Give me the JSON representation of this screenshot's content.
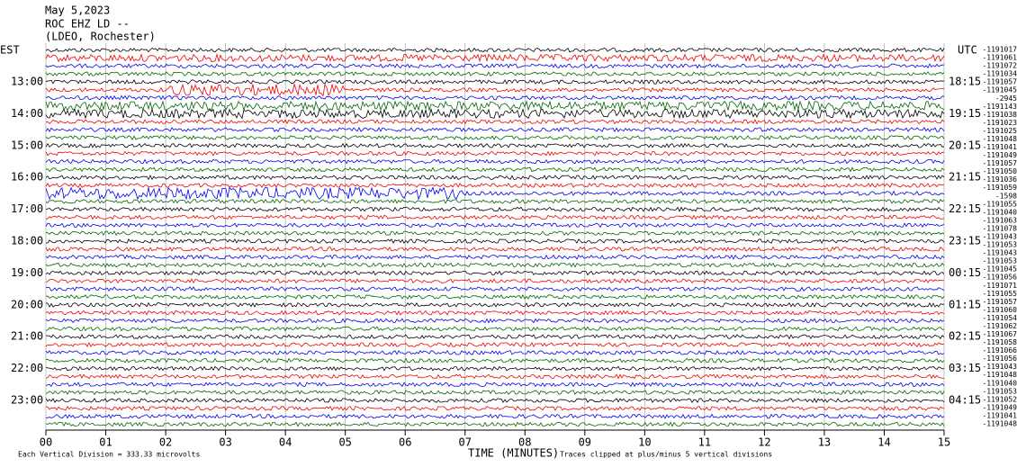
{
  "header": {
    "date": "May 5,2023",
    "station": "ROC EHZ LD --",
    "location": "(LDEO, Rochester)"
  },
  "left_zone": "EST",
  "right_zone": "UTC",
  "left_hours": [
    "13:00",
    "14:00",
    "15:00",
    "16:00",
    "17:00",
    "18:00",
    "19:00",
    "20:00",
    "21:00",
    "22:00",
    "23:00"
  ],
  "right_hours": [
    "18:15",
    "19:15",
    "20:15",
    "21:15",
    "22:15",
    "23:15",
    "00:15",
    "01:15",
    "02:15",
    "03:15",
    "04:15"
  ],
  "trace_offsets": [
    "-1191017",
    "-1191061",
    "-1191072",
    "-1191034",
    "-1191057",
    "-1191045",
    "-2945",
    "-1191143",
    "-1191038",
    "-1191023",
    "-1191025",
    "-1191048",
    "-1191041",
    "-1191049",
    "-1191057",
    "-1191050",
    "-1191036",
    "-1191059",
    "-1598",
    "-1191055",
    "-1191040",
    "-1191063",
    "-1191078",
    "-1191043",
    "-1191053",
    "-1191043",
    "-1191053",
    "-1191045",
    "-1191056",
    "-1191071",
    "-1191055",
    "-1191057",
    "-1191060",
    "-1191054",
    "-1191062",
    "-1191067",
    "-1191058",
    "-1191066",
    "-1191056",
    "-1191043",
    "-1191048",
    "-1191040",
    "-1191053",
    "-1191052",
    "-1191049",
    "-1191041",
    "-1191048"
  ],
  "x_ticks": [
    "00",
    "01",
    "02",
    "03",
    "04",
    "05",
    "06",
    "07",
    "08",
    "09",
    "10",
    "11",
    "12",
    "13",
    "14",
    "15"
  ],
  "x_label": "TIME (MINUTES)",
  "footer_left": "Each Vertical Division =  333.33 microvolts",
  "footer_right": "Traces clipped at plus/minus 5 vertical divisions"
}
